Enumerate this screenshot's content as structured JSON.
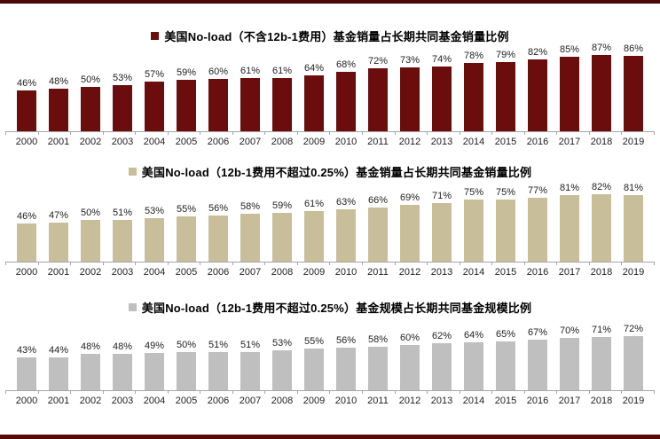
{
  "page": {
    "background": "#ffffff",
    "top_rule_color": "#520707",
    "bottom_rule_color": "#5a0909",
    "axis_color": "#a6a6a6"
  },
  "chart_data": [
    {
      "type": "bar",
      "title": "美国No-load（不含12b-1费用）基金销量占长期共同基金销量比例",
      "legend_position": "top-center",
      "bar_color": "#6b0d0d",
      "unit": "%",
      "grid": false,
      "ylim": [
        0,
        100
      ],
      "value_labels": true,
      "categories": [
        "2000",
        "2001",
        "2002",
        "2003",
        "2004",
        "2005",
        "2006",
        "2007",
        "2008",
        "2009",
        "2010",
        "2011",
        "2012",
        "2013",
        "2014",
        "2015",
        "2016",
        "2017",
        "2018",
        "2019"
      ],
      "values": [
        46,
        48,
        50,
        53,
        57,
        59,
        60,
        61,
        61,
        64,
        68,
        72,
        73,
        74,
        78,
        79,
        82,
        85,
        87,
        86
      ]
    },
    {
      "type": "bar",
      "title": "美国No-load（12b-1费用不超过0.25%）基金销量占长期共同基金销量比例",
      "legend_position": "top-center",
      "bar_color": "#c8bf9a",
      "unit": "%",
      "grid": false,
      "ylim": [
        0,
        100
      ],
      "value_labels": true,
      "categories": [
        "2000",
        "2001",
        "2002",
        "2003",
        "2004",
        "2005",
        "2006",
        "2007",
        "2008",
        "2009",
        "2010",
        "2011",
        "2012",
        "2013",
        "2014",
        "2015",
        "2016",
        "2017",
        "2018",
        "2019"
      ],
      "values": [
        46,
        47,
        50,
        51,
        53,
        55,
        56,
        58,
        59,
        61,
        63,
        66,
        69,
        71,
        75,
        75,
        77,
        81,
        82,
        81
      ]
    },
    {
      "type": "bar",
      "title": "美国No-load（12b-1费用不超过0.25%）基金规模占长期共同基金规模比例",
      "legend_position": "top-center",
      "bar_color": "#bfbfbf",
      "unit": "%",
      "grid": false,
      "ylim": [
        0,
        100
      ],
      "value_labels": true,
      "categories": [
        "2000",
        "2001",
        "2002",
        "2003",
        "2004",
        "2005",
        "2006",
        "2007",
        "2008",
        "2009",
        "2010",
        "2011",
        "2012",
        "2013",
        "2014",
        "2015",
        "2016",
        "2017",
        "2018",
        "2019"
      ],
      "values": [
        43,
        44,
        48,
        48,
        49,
        50,
        51,
        51,
        53,
        55,
        56,
        58,
        60,
        62,
        64,
        65,
        67,
        70,
        71,
        72
      ]
    }
  ]
}
